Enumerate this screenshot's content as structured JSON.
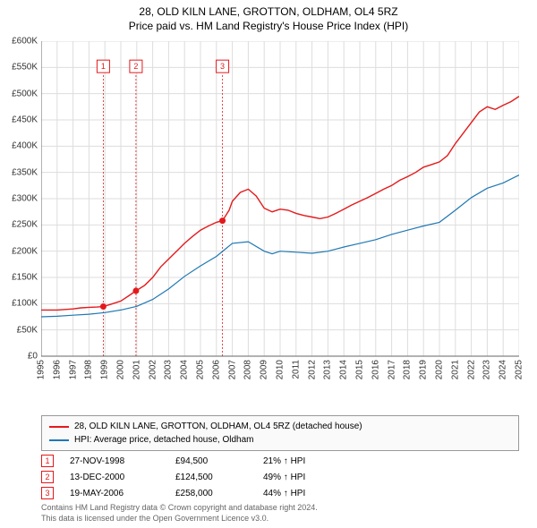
{
  "title_line1": "28, OLD KILN LANE, GROTTON, OLDHAM, OL4 5RZ",
  "title_line2": "Price paid vs. HM Land Registry's House Price Index (HPI)",
  "chart": {
    "type": "line",
    "background_color": "#ffffff",
    "grid_color": "#dddddd",
    "axis_color": "#666666",
    "ylim": [
      0,
      600000
    ],
    "ytick_step": 50000,
    "ytick_labels": [
      "£0",
      "£50K",
      "£100K",
      "£150K",
      "£200K",
      "£250K",
      "£300K",
      "£350K",
      "£400K",
      "£450K",
      "£500K",
      "£550K",
      "£600K"
    ],
    "xlim_years": [
      1995,
      2025
    ],
    "xtick_years": [
      1995,
      1996,
      1997,
      1998,
      1999,
      2000,
      2001,
      2002,
      2003,
      2004,
      2005,
      2006,
      2007,
      2008,
      2009,
      2010,
      2011,
      2012,
      2013,
      2014,
      2015,
      2016,
      2017,
      2018,
      2019,
      2020,
      2021,
      2022,
      2023,
      2024,
      2025
    ],
    "series": [
      {
        "name": "28, OLD KILN LANE, GROTTON, OLDHAM, OL4 5RZ (detached house)",
        "color": "#e31a1c",
        "line_width": 1.4,
        "data": [
          [
            1995,
            88000
          ],
          [
            1996,
            88000
          ],
          [
            1997,
            90000
          ],
          [
            1997.5,
            92000
          ],
          [
            1998,
            93000
          ],
          [
            1998.5,
            93500
          ],
          [
            1998.9,
            94500
          ],
          [
            1999.5,
            100000
          ],
          [
            2000,
            105000
          ],
          [
            2000.5,
            115000
          ],
          [
            2000.95,
            124500
          ],
          [
            2001.5,
            135000
          ],
          [
            2002,
            150000
          ],
          [
            2002.5,
            170000
          ],
          [
            2003,
            185000
          ],
          [
            2003.5,
            200000
          ],
          [
            2004,
            215000
          ],
          [
            2004.5,
            228000
          ],
          [
            2005,
            240000
          ],
          [
            2005.5,
            248000
          ],
          [
            2006,
            255000
          ],
          [
            2006.38,
            258000
          ],
          [
            2006.8,
            278000
          ],
          [
            2007,
            295000
          ],
          [
            2007.5,
            312000
          ],
          [
            2008,
            318000
          ],
          [
            2008.5,
            305000
          ],
          [
            2009,
            282000
          ],
          [
            2009.5,
            275000
          ],
          [
            2010,
            280000
          ],
          [
            2010.5,
            278000
          ],
          [
            2011,
            272000
          ],
          [
            2011.5,
            268000
          ],
          [
            2012,
            265000
          ],
          [
            2012.5,
            262000
          ],
          [
            2013,
            265000
          ],
          [
            2013.5,
            272000
          ],
          [
            2014,
            280000
          ],
          [
            2014.5,
            288000
          ],
          [
            2015,
            295000
          ],
          [
            2015.5,
            302000
          ],
          [
            2016,
            310000
          ],
          [
            2016.5,
            318000
          ],
          [
            2017,
            325000
          ],
          [
            2017.5,
            335000
          ],
          [
            2018,
            342000
          ],
          [
            2018.5,
            350000
          ],
          [
            2019,
            360000
          ],
          [
            2019.5,
            365000
          ],
          [
            2020,
            370000
          ],
          [
            2020.5,
            382000
          ],
          [
            2021,
            405000
          ],
          [
            2021.5,
            425000
          ],
          [
            2022,
            445000
          ],
          [
            2022.5,
            465000
          ],
          [
            2023,
            475000
          ],
          [
            2023.5,
            470000
          ],
          [
            2024,
            478000
          ],
          [
            2024.5,
            485000
          ],
          [
            2025,
            495000
          ]
        ]
      },
      {
        "name": "HPI: Average price, detached house, Oldham",
        "color": "#1f78b4",
        "line_width": 1.2,
        "data": [
          [
            1995,
            75000
          ],
          [
            1996,
            76000
          ],
          [
            1997,
            78000
          ],
          [
            1998,
            80000
          ],
          [
            1999,
            83000
          ],
          [
            2000,
            88000
          ],
          [
            2001,
            95000
          ],
          [
            2002,
            108000
          ],
          [
            2003,
            128000
          ],
          [
            2004,
            152000
          ],
          [
            2005,
            172000
          ],
          [
            2006,
            190000
          ],
          [
            2007,
            215000
          ],
          [
            2008,
            218000
          ],
          [
            2009,
            200000
          ],
          [
            2009.5,
            195000
          ],
          [
            2010,
            200000
          ],
          [
            2011,
            198000
          ],
          [
            2012,
            196000
          ],
          [
            2013,
            200000
          ],
          [
            2014,
            208000
          ],
          [
            2015,
            215000
          ],
          [
            2016,
            222000
          ],
          [
            2017,
            232000
          ],
          [
            2018,
            240000
          ],
          [
            2019,
            248000
          ],
          [
            2020,
            255000
          ],
          [
            2021,
            278000
          ],
          [
            2022,
            302000
          ],
          [
            2023,
            320000
          ],
          [
            2024,
            330000
          ],
          [
            2025,
            345000
          ]
        ]
      }
    ],
    "event_lines": [
      {
        "n": 1,
        "year": 1998.9,
        "color": "#e31a1c",
        "dash": "2,2",
        "marker_y": 552000,
        "point_y": 94500
      },
      {
        "n": 2,
        "year": 2000.95,
        "color": "#e31a1c",
        "dash": "2,2",
        "marker_y": 552000,
        "point_y": 124500
      },
      {
        "n": 3,
        "year": 2006.38,
        "color": "#e31a1c",
        "dash": "2,2",
        "marker_y": 552000,
        "point_y": 258000
      }
    ]
  },
  "legend": {
    "border_color": "#999999",
    "background_color": "#fafafa",
    "items": [
      {
        "color": "#e31a1c",
        "label": "28, OLD KILN LANE, GROTTON, OLDHAM, OL4 5RZ (detached house)"
      },
      {
        "color": "#1f78b4",
        "label": "HPI: Average price, detached house, Oldham"
      }
    ]
  },
  "transactions": [
    {
      "n": "1",
      "color": "#e31a1c",
      "date": "27-NOV-1998",
      "price": "£94,500",
      "delta": "21% ↑ HPI"
    },
    {
      "n": "2",
      "color": "#e31a1c",
      "date": "13-DEC-2000",
      "price": "£124,500",
      "delta": "49% ↑ HPI"
    },
    {
      "n": "3",
      "color": "#e31a1c",
      "date": "19-MAY-2006",
      "price": "£258,000",
      "delta": "44% ↑ HPI"
    }
  ],
  "footer_line1": "Contains HM Land Registry data © Crown copyright and database right 2024.",
  "footer_line2": "This data is licensed under the Open Government Licence v3.0."
}
